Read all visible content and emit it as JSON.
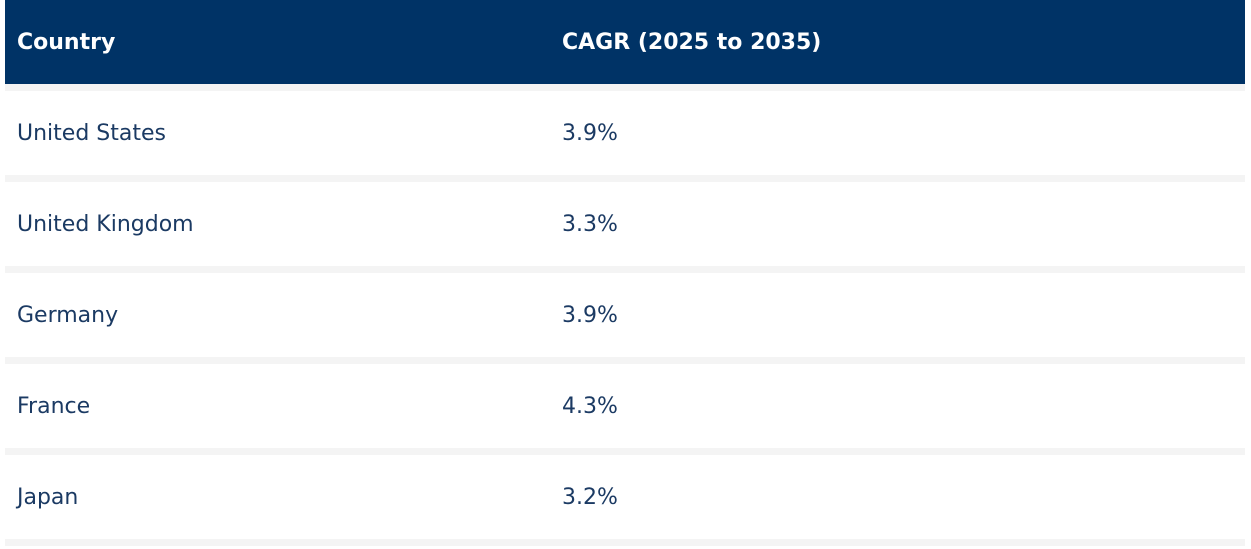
{
  "table": {
    "headers": [
      "Country",
      "CAGR (2025 to 2035)"
    ],
    "rows": [
      {
        "country": "United States",
        "cagr": "3.9%"
      },
      {
        "country": "United Kingdom",
        "cagr": "3.3%"
      },
      {
        "country": "Germany",
        "cagr": "3.9%"
      },
      {
        "country": "France",
        "cagr": "4.3%"
      },
      {
        "country": "Japan",
        "cagr": "3.2%"
      }
    ]
  },
  "colors": {
    "header_bg": "#003366",
    "header_text": "#ffffff",
    "cell_text": "#1b3a63",
    "row_separator": "#f4f4f4"
  }
}
